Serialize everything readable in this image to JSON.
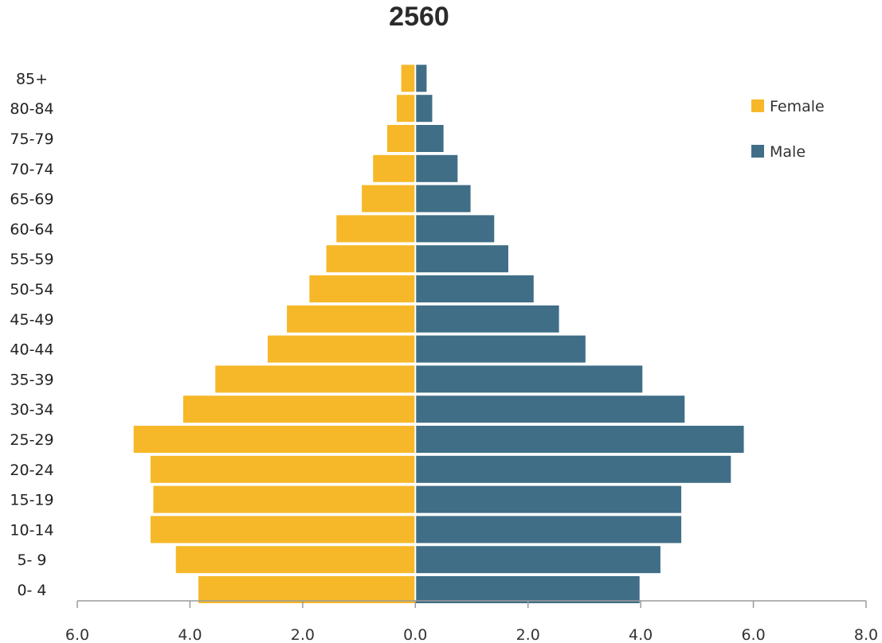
{
  "chart_data": {
    "type": "bar",
    "orientation": "horizontal",
    "subtype": "population-pyramid",
    "title": "2560",
    "categories": [
      "0- 4",
      "5- 9",
      "10-14",
      "15-19",
      "20-24",
      "25-29",
      "30-34",
      "35-39",
      "40-44",
      "45-49",
      "50-54",
      "55-59",
      "60-64",
      "65-69",
      "70-74",
      "75-79",
      "80-84",
      "85+"
    ],
    "series": [
      {
        "name": "Female",
        "side": "left",
        "color": "#F6B829",
        "values": [
          3.85,
          4.25,
          4.7,
          4.65,
          4.7,
          5.0,
          4.12,
          3.55,
          2.62,
          2.28,
          1.88,
          1.58,
          1.4,
          0.95,
          0.75,
          0.5,
          0.33,
          0.25
        ]
      },
      {
        "name": "Male",
        "side": "right",
        "color": "#406E87",
        "values": [
          3.98,
          4.35,
          4.72,
          4.72,
          5.6,
          5.83,
          4.78,
          4.03,
          3.02,
          2.55,
          2.1,
          1.65,
          1.4,
          0.98,
          0.75,
          0.5,
          0.3,
          0.2
        ]
      }
    ],
    "x_ticks": [
      "6.0",
      "4.0",
      "2.0",
      "0.0",
      "2.0",
      "4.0",
      "6.0",
      "8.0"
    ],
    "xlim": [
      -6,
      8
    ],
    "xlabel": "",
    "ylabel": "",
    "grid": false,
    "legend_position": "top-right"
  }
}
